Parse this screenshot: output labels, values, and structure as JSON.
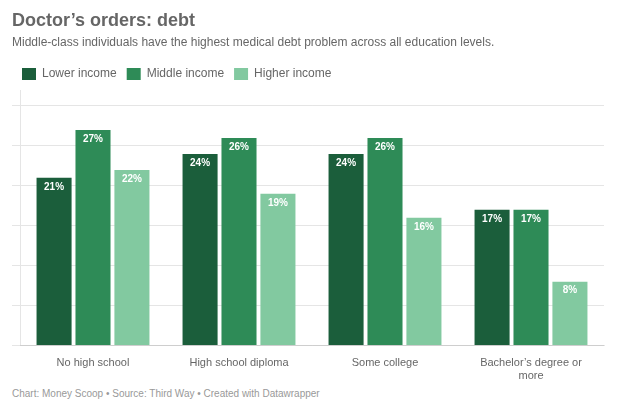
{
  "chart_data": {
    "type": "bar",
    "title": "Doctor’s orders: debt",
    "subtitle": "Middle-class individuals have the highest medical debt problem across all education levels.",
    "footer": "Chart: Money Scoop • Source: Third Way • Created with Datawrapper",
    "categories": [
      "No high school",
      "High school diploma",
      "Some college",
      "Bachelor’s degree or\nmore"
    ],
    "series": [
      {
        "name": "Lower income",
        "color": "#1b5e3b",
        "values": [
          21,
          24,
          24,
          17
        ],
        "value_labels": [
          "21%",
          "24%",
          "24%",
          "17%"
        ]
      },
      {
        "name": "Middle income",
        "color": "#2e8b57",
        "values": [
          27,
          26,
          26,
          17
        ],
        "value_labels": [
          "27%",
          "26%",
          "26%",
          "17%"
        ]
      },
      {
        "name": "Higher income",
        "color": "#82c9a0",
        "values": [
          22,
          19,
          16,
          8
        ],
        "value_labels": [
          "22%",
          "19%",
          "16%",
          "8%"
        ]
      }
    ],
    "ylim": [
      0,
      32
    ],
    "yticks": [
      0,
      5,
      10,
      15,
      20,
      25,
      30
    ],
    "grid": true,
    "legend": "upper left",
    "data_labels": true,
    "tick_labels": "x"
  }
}
